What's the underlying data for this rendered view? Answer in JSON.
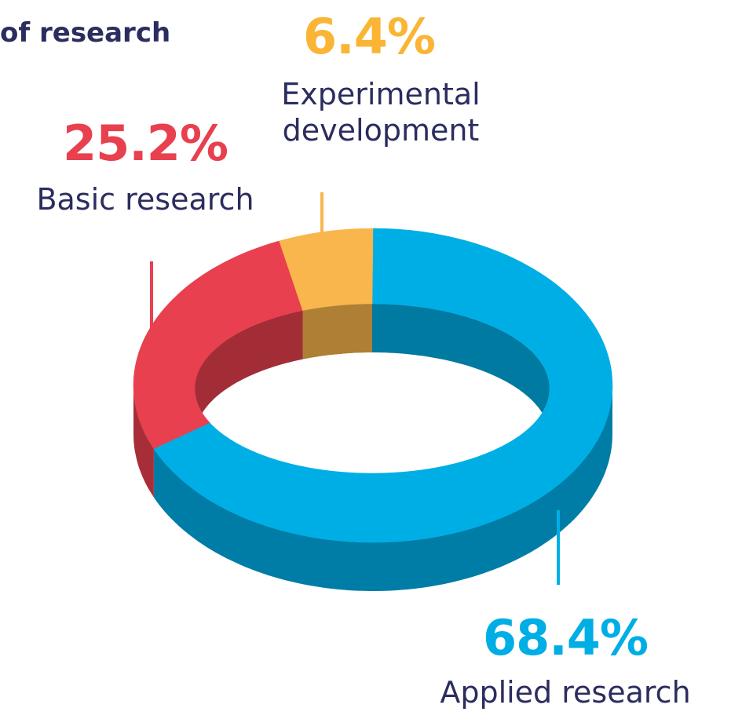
{
  "chart_data": {
    "type": "donut",
    "title": "of research",
    "categories": [
      "Applied research",
      "Basic research",
      "Experimental development"
    ],
    "values": [
      68.4,
      25.2,
      6.4
    ],
    "value_labels": [
      "68.4%",
      "25.2%",
      "6.4%"
    ],
    "colors": [
      "#00aee6",
      "#e8404f",
      "#f8b64c"
    ],
    "label_colors": [
      "#00aee6",
      "#e8404f",
      "#fbb534"
    ]
  }
}
